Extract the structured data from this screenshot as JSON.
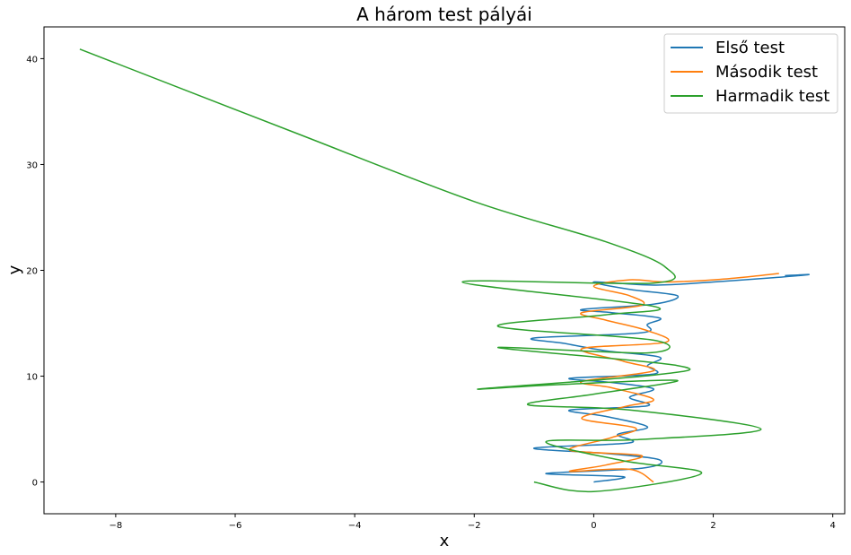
{
  "chart_data": {
    "type": "line",
    "title": "A három test pályái",
    "xlabel": "x",
    "ylabel": "y",
    "xlim": [
      -9.2,
      4.2
    ],
    "ylim": [
      -3,
      43
    ],
    "xticks": [
      -8,
      -6,
      -4,
      -2,
      0,
      2,
      4
    ],
    "yticks": [
      0,
      10,
      20,
      30,
      40
    ],
    "grid": false,
    "legend_position": "top-right",
    "series": [
      {
        "name": "Első test",
        "color": "#1f77b4",
        "points": [
          [
            0,
            0
          ],
          [
            0.5,
            0.5
          ],
          [
            -0.8,
            0.8
          ],
          [
            0.8,
            1.3
          ],
          [
            1.1,
            2.1
          ],
          [
            0.2,
            2.7
          ],
          [
            -1.0,
            3.2
          ],
          [
            0.6,
            3.7
          ],
          [
            0.4,
            4.5
          ],
          [
            0.9,
            5.2
          ],
          [
            0.2,
            6.2
          ],
          [
            -0.4,
            6.8
          ],
          [
            0.9,
            7.2
          ],
          [
            0.6,
            8.0
          ],
          [
            1.0,
            8.8
          ],
          [
            0.3,
            9.4
          ],
          [
            -0.4,
            9.8
          ],
          [
            1.0,
            10.2
          ],
          [
            0.9,
            11.0
          ],
          [
            1.1,
            11.8
          ],
          [
            0.2,
            12.4
          ],
          [
            -0.5,
            13.1
          ],
          [
            -1.0,
            13.6
          ],
          [
            0.8,
            14.1
          ],
          [
            0.9,
            14.9
          ],
          [
            1.1,
            15.5
          ],
          [
            0.3,
            16.0
          ],
          [
            -0.2,
            16.3
          ],
          [
            1.0,
            16.8
          ],
          [
            1.4,
            17.6
          ],
          [
            0.6,
            18.2
          ],
          [
            0.0,
            18.9
          ],
          [
            1.0,
            18.6
          ],
          [
            2.0,
            18.9
          ],
          [
            3.0,
            19.3
          ],
          [
            3.6,
            19.6
          ],
          [
            3.2,
            19.5
          ]
        ]
      },
      {
        "name": "Második test",
        "color": "#ff7f0e",
        "points": [
          [
            1.0,
            0
          ],
          [
            0.6,
            1.2
          ],
          [
            -0.4,
            1.0
          ],
          [
            0.2,
            1.6
          ],
          [
            0.8,
            2.5
          ],
          [
            -0.4,
            3.0
          ],
          [
            0.3,
            4.2
          ],
          [
            0.7,
            5.1
          ],
          [
            -0.2,
            6.0
          ],
          [
            0.5,
            7.1
          ],
          [
            1.0,
            7.8
          ],
          [
            0.3,
            8.9
          ],
          [
            -0.2,
            9.5
          ],
          [
            1.0,
            10.5
          ],
          [
            0.5,
            11.4
          ],
          [
            -0.2,
            12.6
          ],
          [
            1.2,
            13.2
          ],
          [
            0.9,
            14.3
          ],
          [
            0.2,
            15.3
          ],
          [
            -0.2,
            16.0
          ],
          [
            0.8,
            16.7
          ],
          [
            0.6,
            17.6
          ],
          [
            0.0,
            18.5
          ],
          [
            0.6,
            19.1
          ],
          [
            1.2,
            18.9
          ],
          [
            2.0,
            19.1
          ],
          [
            2.6,
            19.4
          ],
          [
            3.1,
            19.7
          ]
        ]
      },
      {
        "name": "Harmadik test",
        "color": "#2ca02c",
        "points": [
          [
            -1.0,
            0
          ],
          [
            0.0,
            -0.9
          ],
          [
            1.8,
            0.8
          ],
          [
            0.5,
            2.0
          ],
          [
            -0.8,
            3.8
          ],
          [
            0.7,
            4.0
          ],
          [
            2.8,
            5.0
          ],
          [
            0.6,
            6.8
          ],
          [
            -1.1,
            7.3
          ],
          [
            0.0,
            8.3
          ],
          [
            1.4,
            9.6
          ],
          [
            -0.6,
            9.2
          ],
          [
            -1.9,
            8.8
          ],
          [
            1.0,
            10.1
          ],
          [
            1.4,
            11.0
          ],
          [
            -1.6,
            12.7
          ],
          [
            0.9,
            12.2
          ],
          [
            1.0,
            13.4
          ],
          [
            -1.6,
            14.7
          ],
          [
            0.2,
            15.8
          ],
          [
            1.0,
            16.6
          ],
          [
            -2.2,
            18.9
          ],
          [
            1.0,
            18.8
          ],
          [
            1.2,
            20.3
          ],
          [
            0.2,
            22.7
          ],
          [
            -2.0,
            26.5
          ],
          [
            -5.0,
            33.0
          ],
          [
            -8.6,
            40.9
          ]
        ]
      }
    ]
  }
}
